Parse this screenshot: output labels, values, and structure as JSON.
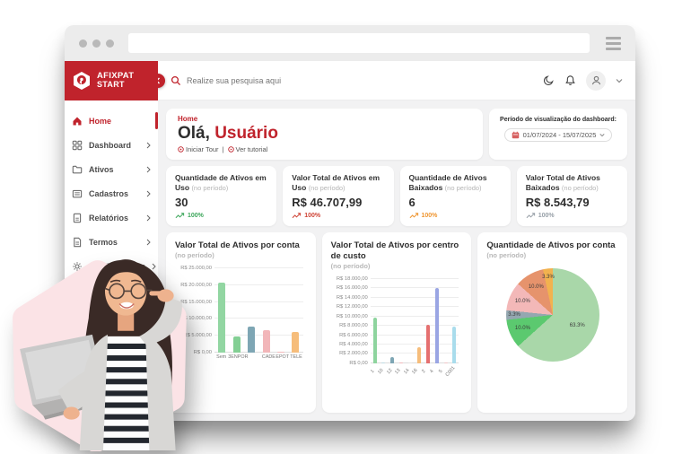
{
  "theme": {
    "brand": "#c0232c",
    "content_bg": "#f2f2f3"
  },
  "browser": {
    "url_value": ""
  },
  "logo": {
    "top": "AFIXPAT",
    "bottom": "START"
  },
  "sidebar": {
    "items": [
      {
        "label": "Home",
        "active": true
      },
      {
        "label": "Dashboard",
        "active": false
      },
      {
        "label": "Ativos",
        "active": false
      },
      {
        "label": "Cadastros",
        "active": false
      },
      {
        "label": "Relatórios",
        "active": false
      },
      {
        "label": "Termos",
        "active": false
      },
      {
        "label": "Configurações",
        "active": false
      }
    ]
  },
  "topbar": {
    "search_placeholder": "Realize sua pesquisa aqui"
  },
  "welcome": {
    "breadcrumb": "Home",
    "greeting": "Olá,",
    "name": "Usuário",
    "tour_label": "Iniciar Tour",
    "separator": "|",
    "tutorial_label": "Ver tutorial"
  },
  "period": {
    "label": "Período de visualização do dashboard:",
    "value": "01/07/2024 - 15/07/2025"
  },
  "kpis": [
    {
      "title": "Quantidade de Ativos em Uso",
      "period_note": "(no período)",
      "value": "30",
      "trend": "100%",
      "trend_color": "#3ca65a"
    },
    {
      "title": "Valor Total de Ativos em Uso",
      "period_note": "(no período)",
      "value": "R$ 46.707,99",
      "trend": "100%",
      "trend_color": "#cf4436"
    },
    {
      "title": "Quantidade de Ativos Baixados",
      "period_note": "(no período)",
      "value": "6",
      "trend": "100%",
      "trend_color": "#ef9631"
    },
    {
      "title": "Valor Total de Ativos Baixados",
      "period_note": "(no período)",
      "value": "R$ 8.543,79",
      "trend": "100%",
      "trend_color": "#98a0a8"
    }
  ],
  "chart_data": [
    {
      "type": "bar",
      "title": "Valor Total de Ativos por conta",
      "subtitle": "(no período)",
      "categories": [
        "Sem",
        "3ENPOR",
        "",
        "CADE",
        "EPOT",
        "TELE"
      ],
      "values": [
        20800,
        4800,
        7700,
        6700,
        300,
        6000
      ],
      "colors": [
        "#92d6a2",
        "#83cf94",
        "#7ea6b4",
        "#f2b6b9",
        "#f2b6b9",
        "#f6bd7b"
      ],
      "ylim": [
        0,
        25000
      ],
      "yticks": [
        "R$ 25.000,00",
        "R$ 20.000,00",
        "R$ 15.000,00",
        "R$ 10.000,00",
        "R$ 5.000,00",
        "R$ 0,00"
      ],
      "rotate_labels": false,
      "grid": true,
      "legend": "none"
    },
    {
      "type": "bar",
      "title": "Valor Total de Ativos por centro de custo",
      "subtitle": "(no período)",
      "categories": [
        "1",
        "10",
        "12",
        "13",
        "14",
        "16",
        "2",
        "4",
        "5",
        "C001"
      ],
      "values": [
        9800,
        100,
        1300,
        150,
        100,
        3500,
        8200,
        16100,
        150,
        7800
      ],
      "colors": [
        "#8ed49e",
        "#bcd9e2",
        "#7ea6b4",
        "#f2b6b9",
        "#e3e3e3",
        "#f6bd7b",
        "#e57070",
        "#9aa5e3",
        "#f0c3c5",
        "#a9dcec"
      ],
      "ylim": [
        0,
        18000
      ],
      "yticks": [
        "R$ 18.000,00",
        "R$ 16.000,00",
        "R$ 14.000,00",
        "R$ 12.000,00",
        "R$ 10.000,00",
        "R$ 8.000,00",
        "R$ 6.000,00",
        "R$ 4.000,00",
        "R$ 2.000,00",
        "R$ 0,00"
      ],
      "rotate_labels": true,
      "grid": true,
      "legend": "none"
    },
    {
      "type": "pie",
      "title": "Quantidade de Ativos por conta",
      "subtitle": "(no período)",
      "slices": [
        {
          "label": "63.3%",
          "value": 63.3,
          "color": "#a9d7a9"
        },
        {
          "label": "10.0%",
          "value": 10.0,
          "color": "#5bc96f"
        },
        {
          "label": "3.3%",
          "value": 3.3,
          "color": "#94a7b0"
        },
        {
          "label": "10.0%",
          "value": 10.0,
          "color": "#f3b8b8"
        },
        {
          "label": "10.0%",
          "value": 10.0,
          "color": "#e6936c"
        },
        {
          "label": "3.3%",
          "value": 3.3,
          "color": "#f2b24f"
        }
      ],
      "legend": "none"
    }
  ]
}
